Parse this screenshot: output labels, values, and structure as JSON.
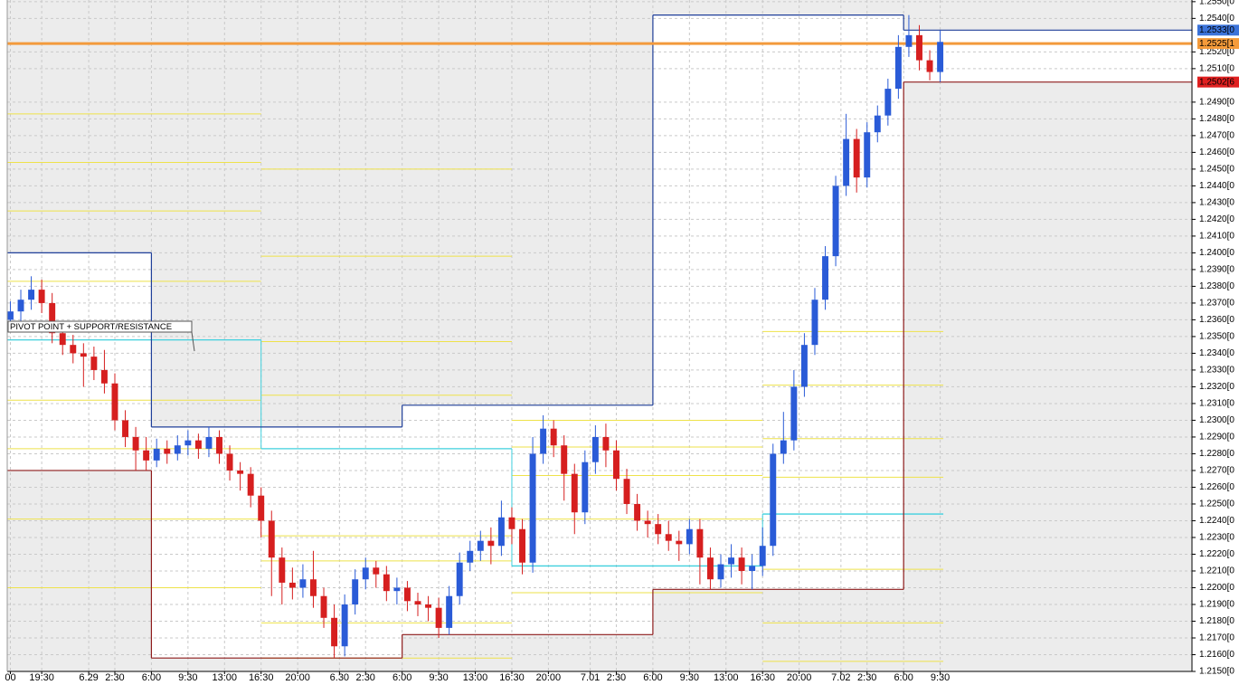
{
  "chart_data": {
    "type": "candlestick",
    "annotation": "PIVOT POINT + SUPPORT/RESISTANCE",
    "xlim": [
      -3.3,
      110.1
    ],
    "ylim": [
      1.215,
      1.2551
    ],
    "xticks": [
      {
        "value": -3,
        "label": "00"
      },
      {
        "value": 0,
        "label": "19:30"
      },
      {
        "value": 4.5,
        "label": "6.29"
      },
      {
        "value": 7,
        "label": "2:30"
      },
      {
        "value": 10.5,
        "label": "6:00"
      },
      {
        "value": 14,
        "label": "9:30"
      },
      {
        "value": 17.5,
        "label": "13:00"
      },
      {
        "value": 21,
        "label": "16:30"
      },
      {
        "value": 24.5,
        "label": "20:00"
      },
      {
        "value": 28.5,
        "label": "6.30"
      },
      {
        "value": 31,
        "label": "2:30"
      },
      {
        "value": 34.5,
        "label": "6:00"
      },
      {
        "value": 38,
        "label": "9:30"
      },
      {
        "value": 41.5,
        "label": "13:00"
      },
      {
        "value": 45,
        "label": "16:30"
      },
      {
        "value": 48.5,
        "label": "20:00"
      },
      {
        "value": 52.5,
        "label": "7.01"
      },
      {
        "value": 55,
        "label": "2:30"
      },
      {
        "value": 58.5,
        "label": "6:00"
      },
      {
        "value": 62,
        "label": "9:30"
      },
      {
        "value": 65.5,
        "label": "13:00"
      },
      {
        "value": 69,
        "label": "16:30"
      },
      {
        "value": 72.5,
        "label": "20:00"
      },
      {
        "value": 76.5,
        "label": "7.02"
      },
      {
        "value": 79,
        "label": "2:30"
      },
      {
        "value": 82.5,
        "label": "6:00"
      },
      {
        "value": 86,
        "label": "9:30"
      }
    ],
    "yticks": [
      {
        "value": 1.215,
        "label": "1.2150[0"
      },
      {
        "value": 1.216,
        "label": "1.2160[0"
      },
      {
        "value": 1.217,
        "label": "1.2170[0"
      },
      {
        "value": 1.218,
        "label": "1.2180[0"
      },
      {
        "value": 1.219,
        "label": "1.2190[0"
      },
      {
        "value": 1.22,
        "label": "1.2200[0"
      },
      {
        "value": 1.221,
        "label": "1.2210[0"
      },
      {
        "value": 1.222,
        "label": "1.2220[0"
      },
      {
        "value": 1.223,
        "label": "1.2230[0"
      },
      {
        "value": 1.224,
        "label": "1.2240[0"
      },
      {
        "value": 1.225,
        "label": "1.2250[0"
      },
      {
        "value": 1.226,
        "label": "1.2260[0"
      },
      {
        "value": 1.227,
        "label": "1.2270[0"
      },
      {
        "value": 1.228,
        "label": "1.2280[0"
      },
      {
        "value": 1.229,
        "label": "1.2290[0"
      },
      {
        "value": 1.23,
        "label": "1.2300[0"
      },
      {
        "value": 1.231,
        "label": "1.2310[0"
      },
      {
        "value": 1.232,
        "label": "1.2320[0"
      },
      {
        "value": 1.233,
        "label": "1.2330[0"
      },
      {
        "value": 1.234,
        "label": "1.2340[0"
      },
      {
        "value": 1.235,
        "label": "1.2350[0"
      },
      {
        "value": 1.236,
        "label": "1.2360[0"
      },
      {
        "value": 1.237,
        "label": "1.2370[0"
      },
      {
        "value": 1.238,
        "label": "1.2380[0"
      },
      {
        "value": 1.239,
        "label": "1.2390[0"
      },
      {
        "value": 1.24,
        "label": "1.2400[0"
      },
      {
        "value": 1.241,
        "label": "1.2410[0"
      },
      {
        "value": 1.242,
        "label": "1.2420[0"
      },
      {
        "value": 1.243,
        "label": "1.2430[0"
      },
      {
        "value": 1.244,
        "label": "1.2440[0"
      },
      {
        "value": 1.245,
        "label": "1.2450[0"
      },
      {
        "value": 1.246,
        "label": "1.2460[0"
      },
      {
        "value": 1.247,
        "label": "1.2470[0"
      },
      {
        "value": 1.248,
        "label": "1.2480[0"
      },
      {
        "value": 1.249,
        "label": "1.2490[0"
      },
      {
        "value": 1.251,
        "label": "1.2510[0"
      },
      {
        "value": 1.252,
        "label": "1.2520[0"
      },
      {
        "value": 1.254,
        "label": "1.2540[0"
      },
      {
        "value": 1.255,
        "label": "1.2550[0"
      }
    ],
    "grid": true,
    "up_color": "#2a5bd7",
    "down_color": "#d61f1f",
    "x": [
      -3,
      -2,
      -1,
      0,
      1,
      2,
      3,
      4,
      5,
      6,
      7,
      8,
      9,
      10,
      11,
      12,
      13,
      14,
      15,
      16,
      17,
      18,
      19,
      20,
      21,
      22,
      23,
      24,
      25,
      26,
      27,
      28,
      29,
      30,
      31,
      32,
      33,
      34,
      35,
      36,
      37,
      38,
      39,
      40,
      41,
      42,
      43,
      44,
      45,
      46,
      47,
      48,
      49,
      50,
      51,
      52,
      53,
      54,
      55,
      56,
      57,
      58,
      59,
      60,
      61,
      62,
      63,
      64,
      65,
      66,
      67,
      68,
      69,
      70,
      71,
      72,
      73,
      74,
      75,
      76,
      77,
      78,
      79,
      80,
      81,
      82,
      83,
      84,
      85,
      86
    ],
    "open": [
      1.236,
      1.2365,
      1.2372,
      1.2378,
      1.237,
      1.2352,
      1.2345,
      1.234,
      1.2338,
      1.233,
      1.2322,
      1.23,
      1.229,
      1.2282,
      1.2276,
      1.2283,
      1.228,
      1.2285,
      1.2288,
      1.2283,
      1.229,
      1.228,
      1.227,
      1.2268,
      1.2255,
      1.224,
      1.2218,
      1.2203,
      1.22,
      1.2205,
      1.2195,
      1.2182,
      1.2165,
      1.219,
      1.2205,
      1.2212,
      1.2208,
      1.2198,
      1.22,
      1.2192,
      1.219,
      1.2188,
      1.2176,
      1.2195,
      1.2215,
      1.2222,
      1.2228,
      1.2225,
      1.2242,
      1.2235,
      1.2215,
      1.228,
      1.2295,
      1.2285,
      1.2268,
      1.2245,
      1.2275,
      1.229,
      1.2282,
      1.2265,
      1.225,
      1.224,
      1.2238,
      1.2232,
      1.2228,
      1.2226,
      1.2235,
      1.2218,
      1.2205,
      1.2214,
      1.2218,
      1.221,
      1.2213,
      1.2225,
      1.228,
      1.2288,
      1.232,
      1.2345,
      1.2372,
      1.2398,
      1.244,
      1.2468,
      1.2445,
      1.2472,
      1.2482,
      1.2498,
      1.2523,
      1.253,
      1.2515,
      1.2508
    ],
    "high": [
      1.2371,
      1.2378,
      1.2386,
      1.2384,
      1.2376,
      1.2358,
      1.2351,
      1.2346,
      1.2344,
      1.2342,
      1.2328,
      1.2306,
      1.2296,
      1.229,
      1.2289,
      1.2288,
      1.2291,
      1.2294,
      1.2292,
      1.2296,
      1.2294,
      1.2285,
      1.2275,
      1.2272,
      1.226,
      1.2246,
      1.2224,
      1.2212,
      1.2214,
      1.2222,
      1.22,
      1.219,
      1.2196,
      1.2211,
      1.2218,
      1.2216,
      1.2213,
      1.2206,
      1.2204,
      1.2197,
      1.2195,
      1.2194,
      1.2201,
      1.2221,
      1.2228,
      1.2234,
      1.2236,
      1.2252,
      1.2248,
      1.2241,
      1.229,
      1.2303,
      1.23,
      1.2291,
      1.2274,
      1.2282,
      1.2297,
      1.2298,
      1.2288,
      1.2271,
      1.2256,
      1.2246,
      1.2244,
      1.224,
      1.2234,
      1.2241,
      1.2241,
      1.2224,
      1.222,
      1.2226,
      1.2224,
      1.222,
      1.2236,
      1.2286,
      1.2305,
      1.233,
      1.2352,
      1.2379,
      1.2404,
      1.2446,
      1.2483,
      1.2474,
      1.2478,
      1.2488,
      1.2504,
      1.253,
      1.2542,
      1.2536,
      1.2521,
      1.2533
    ],
    "low": [
      1.2354,
      1.2359,
      1.2366,
      1.2364,
      1.2346,
      1.2339,
      1.2334,
      1.232,
      1.2324,
      1.2316,
      1.2294,
      1.2284,
      1.227,
      1.227,
      1.2272,
      1.2274,
      1.2276,
      1.2279,
      1.2277,
      1.2278,
      1.2274,
      1.2264,
      1.2258,
      1.2248,
      1.223,
      1.2195,
      1.219,
      1.2193,
      1.2194,
      1.2188,
      1.2176,
      1.2158,
      1.2159,
      1.2184,
      1.2199,
      1.22,
      1.2192,
      1.219,
      1.2186,
      1.2183,
      1.218,
      1.217,
      1.2172,
      1.219,
      1.221,
      1.2216,
      1.2214,
      1.2219,
      1.2226,
      1.2208,
      1.2209,
      1.2274,
      1.2278,
      1.2252,
      1.2232,
      1.2238,
      1.2268,
      1.2272,
      1.2258,
      1.2244,
      1.2234,
      1.223,
      1.2226,
      1.2222,
      1.2216,
      1.222,
      1.2202,
      1.2199,
      1.22,
      1.2206,
      1.2202,
      1.2199,
      1.2207,
      1.2219,
      1.2274,
      1.2282,
      1.2314,
      1.2339,
      1.2366,
      1.2392,
      1.2434,
      1.2436,
      1.2439,
      1.2466,
      1.2476,
      1.2492,
      1.2517,
      1.2509,
      1.2503,
      1.2502
    ],
    "close": [
      1.2365,
      1.2372,
      1.2378,
      1.237,
      1.2352,
      1.2345,
      1.234,
      1.2338,
      1.233,
      1.2322,
      1.23,
      1.229,
      1.2282,
      1.2276,
      1.2283,
      1.228,
      1.2285,
      1.2288,
      1.2283,
      1.229,
      1.228,
      1.227,
      1.2268,
      1.2255,
      1.224,
      1.2218,
      1.2203,
      1.22,
      1.2205,
      1.2195,
      1.2182,
      1.2165,
      1.219,
      1.2205,
      1.2212,
      1.2208,
      1.2198,
      1.22,
      1.2192,
      1.219,
      1.2188,
      1.2176,
      1.2195,
      1.2215,
      1.2222,
      1.2228,
      1.2225,
      1.2242,
      1.2235,
      1.2215,
      1.228,
      1.2295,
      1.2285,
      1.2268,
      1.2245,
      1.2275,
      1.229,
      1.2282,
      1.2265,
      1.225,
      1.224,
      1.2238,
      1.2232,
      1.2228,
      1.2226,
      1.2235,
      1.2218,
      1.2205,
      1.2214,
      1.2218,
      1.221,
      1.2213,
      1.2225,
      1.228,
      1.2288,
      1.232,
      1.2345,
      1.2372,
      1.2398,
      1.244,
      1.2468,
      1.2445,
      1.2472,
      1.2482,
      1.2498,
      1.2523,
      1.253,
      1.2515,
      1.2508,
      1.2526
    ],
    "day_breaks": [
      10.5,
      34.5,
      58.5,
      82.5
    ],
    "day_highs": [
      1.24,
      1.2296,
      1.2309,
      1.2542,
      1.2533
    ],
    "day_lows": [
      1.227,
      1.2158,
      1.2172,
      1.2199,
      1.2502
    ],
    "high_color": "#1f3f99",
    "low_color": "#8e1b1b",
    "level_breaks": [
      21,
      45,
      69
    ],
    "level_end": 86.3,
    "pivots": [
      1.2348,
      1.2283,
      1.2213,
      1.2244
    ],
    "pivot_color": "#3fd0de",
    "sr_levels": [
      [
        1.2483,
        1.2454,
        1.2425,
        1.2383,
        1.2312,
        1.2283,
        1.2241,
        1.22
      ],
      [
        1.245,
        1.2398,
        1.2347,
        1.2315,
        1.2231,
        1.2216,
        1.2179,
        1.2158
      ],
      [
        1.23,
        1.2284,
        1.2267,
        1.2241,
        1.2197
      ],
      [
        1.2353,
        1.2321,
        1.2289,
        1.2266,
        1.2211,
        1.2179,
        1.2156
      ]
    ],
    "sr_color": "#eee24a",
    "current_line": 1.2525,
    "current_color": "#f39a3c",
    "price_tags": [
      {
        "value": 1.2533,
        "label": "1.2533[0",
        "color": "#3b73d9"
      },
      {
        "value": 1.2525,
        "label": "1.2525[1",
        "color": "#f59b3a"
      },
      {
        "value": 1.2502,
        "label": "1.2502[6",
        "color": "#e02020"
      }
    ]
  }
}
